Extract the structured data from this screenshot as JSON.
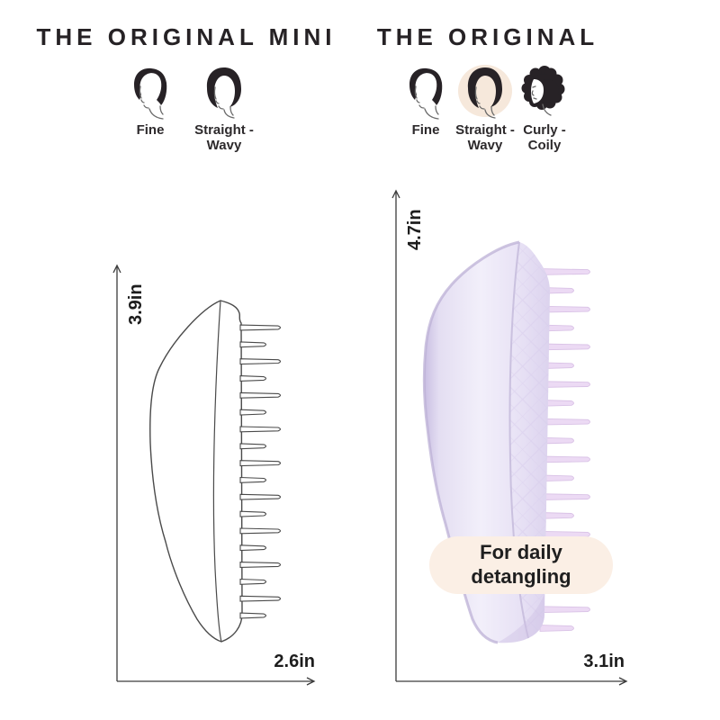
{
  "products": {
    "mini": {
      "title": "THE ORIGINAL MINI",
      "hair_types": [
        {
          "name": "fine",
          "line1": "Fine",
          "line2": ""
        },
        {
          "name": "straight-wavy",
          "line1": "Straight -",
          "line2": "Wavy"
        }
      ],
      "height_label": "3.9in",
      "width_label": "2.6in"
    },
    "original": {
      "title": "THE ORIGINAL",
      "hair_types": [
        {
          "name": "fine",
          "line1": "Fine",
          "line2": ""
        },
        {
          "name": "straight-wavy",
          "line1": "Straight -",
          "line2": "Wavy",
          "highlighted": true
        },
        {
          "name": "curly-coily",
          "line1": "Curly -",
          "line2": "Coily"
        }
      ],
      "height_label": "4.7in",
      "width_label": "3.1in",
      "badge": {
        "line1": "For daily",
        "line2": "detangling"
      }
    }
  },
  "colors": {
    "title_text": "#262225",
    "label_text": "#2d2a2c",
    "dimension_text": "#1d1d1d",
    "dimension_line": "#3c3c3c",
    "outline_drawing": "#4a4a4a",
    "brush_body_lilac": "#E6E0F3",
    "brush_teeth_lilac": "#ECDAF4",
    "badge_background": "#FBEFE5",
    "highlight_blob": "#F6E8DB",
    "hair_icon": "#272226"
  }
}
